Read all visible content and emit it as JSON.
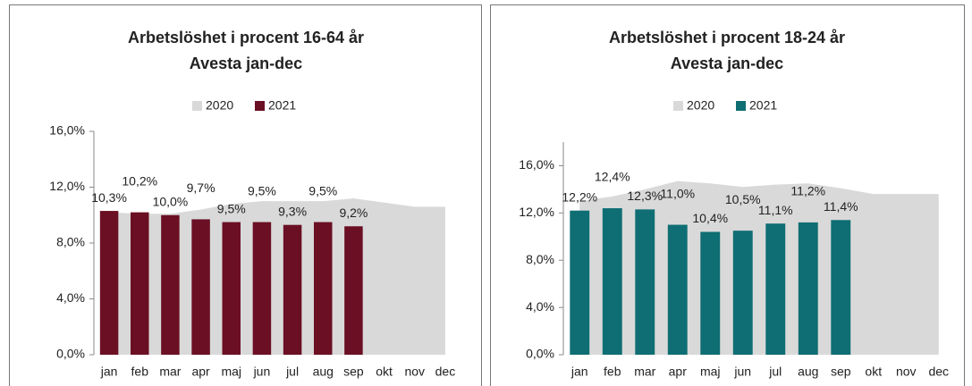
{
  "chart_data": [
    {
      "type": "bar",
      "title": "Arbetslöshet i procent 16-64 år",
      "subtitle": "Avesta jan-dec",
      "categories": [
        "jan",
        "feb",
        "mar",
        "apr",
        "maj",
        "jun",
        "jul",
        "aug",
        "sep",
        "okt",
        "nov",
        "dec"
      ],
      "series": [
        {
          "name": "2020",
          "color": "#d9d9d9",
          "kind": "area",
          "values": [
            10.2,
            10.1,
            10.1,
            10.4,
            10.8,
            11.0,
            11.0,
            11.0,
            11.2,
            10.9,
            10.6,
            10.6
          ]
        },
        {
          "name": "2021",
          "color": "#6b0f24",
          "kind": "bar",
          "values": [
            10.3,
            10.2,
            10.0,
            9.7,
            9.5,
            9.5,
            9.3,
            9.5,
            9.2,
            null,
            null,
            null
          ],
          "value_labels": [
            "10,3%",
            "10,2%",
            "10,0%",
            "9,7%",
            "9,5%",
            "9,5%",
            "9,3%",
            "9,5%",
            "9,2%",
            null,
            null,
            null
          ]
        }
      ],
      "ylim": [
        0,
        16
      ],
      "yticks": [
        {
          "value": 0,
          "label": "0,0%"
        },
        {
          "value": 4,
          "label": "4,0%"
        },
        {
          "value": 8,
          "label": "8,0%"
        },
        {
          "value": 12,
          "label": "12,0%"
        },
        {
          "value": 16,
          "label": "16,0%"
        }
      ]
    },
    {
      "type": "bar",
      "title": "Arbetslöshet  i procent 18-24 år",
      "subtitle": "Avesta jan-dec",
      "categories": [
        "jan",
        "feb",
        "mar",
        "apr",
        "maj",
        "jun",
        "jul",
        "aug",
        "sep",
        "okt",
        "nov",
        "dec"
      ],
      "series": [
        {
          "name": "2020",
          "color": "#d9d9d9",
          "kind": "area",
          "values": [
            13.0,
            13.4,
            14.0,
            14.7,
            14.5,
            14.2,
            14.4,
            14.5,
            14.1,
            13.6,
            13.6,
            13.6
          ]
        },
        {
          "name": "2021",
          "color": "#0e6e73",
          "kind": "bar",
          "values": [
            12.2,
            12.4,
            12.3,
            11.0,
            10.4,
            10.5,
            11.1,
            11.2,
            11.4,
            null,
            null,
            null
          ],
          "value_labels": [
            "12,2%",
            "12,4%",
            "12,3%",
            "11,0%",
            "10,4%",
            "10,5%",
            "11,1%",
            "11,2%",
            "11,4%",
            null,
            null,
            null
          ]
        }
      ],
      "ylim": [
        0,
        18
      ],
      "yticks": [
        {
          "value": 0,
          "label": "0,0%"
        },
        {
          "value": 4,
          "label": "4,0%"
        },
        {
          "value": 8,
          "label": "8,0%"
        },
        {
          "value": 12,
          "label": "12,0%"
        },
        {
          "value": 16,
          "label": "16,0%"
        }
      ]
    }
  ]
}
